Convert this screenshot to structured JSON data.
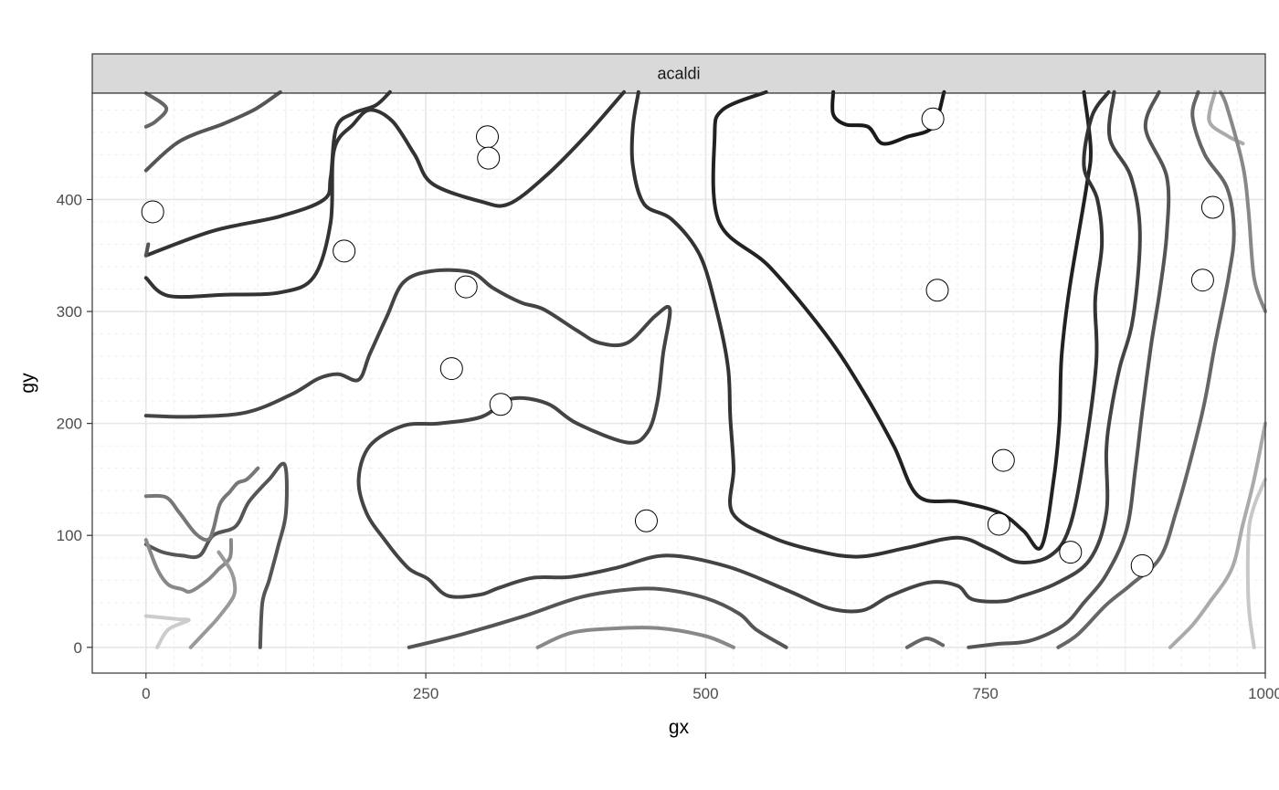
{
  "chart_data": {
    "type": "scatter",
    "facet_label": "acaldi",
    "xlabel": "gx",
    "ylabel": "gy",
    "xlim": [
      -48,
      1000
    ],
    "ylim": [
      -23,
      495
    ],
    "x_ticks": [
      0,
      250,
      500,
      750,
      1000
    ],
    "x_tick_labels": [
      "0",
      "250",
      "500",
      "750",
      "1000"
    ],
    "y_ticks": [
      0,
      100,
      200,
      300,
      400
    ],
    "y_tick_labels": [
      "0",
      "100",
      "200",
      "300",
      "400"
    ],
    "grid": true,
    "theme": "bw",
    "points": [
      {
        "x": 6,
        "y": 389
      },
      {
        "x": 177,
        "y": 354
      },
      {
        "x": 305,
        "y": 456
      },
      {
        "x": 306,
        "y": 437
      },
      {
        "x": 286,
        "y": 322
      },
      {
        "x": 273,
        "y": 249
      },
      {
        "x": 317,
        "y": 217
      },
      {
        "x": 447,
        "y": 113
      },
      {
        "x": 703,
        "y": 472
      },
      {
        "x": 707,
        "y": 319
      },
      {
        "x": 766,
        "y": 167
      },
      {
        "x": 762,
        "y": 110
      },
      {
        "x": 826,
        "y": 85
      },
      {
        "x": 890,
        "y": 73
      },
      {
        "x": 953,
        "y": 393
      },
      {
        "x": 944,
        "y": 328
      }
    ],
    "contours": [
      {
        "color": "#1a1a1a",
        "points": [
          [
            614,
            496
          ],
          [
            614,
            476
          ],
          [
            625,
            467
          ],
          [
            645,
            465
          ],
          [
            658,
            450
          ],
          [
            680,
            456
          ],
          [
            703,
            465
          ],
          [
            713,
            496
          ]
        ]
      },
      {
        "color": "#222222",
        "points": [
          [
            554,
            496
          ],
          [
            515,
            480
          ],
          [
            508,
            455
          ],
          [
            512,
            380
          ],
          [
            557,
            340
          ],
          [
            607,
            280
          ],
          [
            640,
            230
          ],
          [
            668,
            180
          ],
          [
            690,
            135
          ],
          [
            726,
            130
          ],
          [
            763,
            120
          ],
          [
            784,
            104
          ],
          [
            800,
            90
          ],
          [
            811,
            150
          ],
          [
            816,
            200
          ],
          [
            818,
            260
          ],
          [
            825,
            320
          ],
          [
            840,
            410
          ],
          [
            844,
            445
          ],
          [
            838,
            496
          ]
        ]
      },
      {
        "color": "#333333",
        "points": [
          [
            218,
            496
          ],
          [
            205,
            484
          ],
          [
            185,
            477
          ],
          [
            170,
            464
          ],
          [
            165,
            420
          ],
          [
            159,
            400
          ],
          [
            120,
            385
          ],
          [
            60,
            372
          ],
          [
            0,
            350
          ]
        ]
      },
      {
        "color": "#333333",
        "points": [
          [
            0,
            330
          ],
          [
            20,
            314
          ],
          [
            70,
            315
          ],
          [
            120,
            317
          ],
          [
            150,
            331
          ],
          [
            165,
            380
          ],
          [
            168,
            444
          ],
          [
            185,
            467
          ],
          [
            200,
            480
          ],
          [
            220,
            470
          ],
          [
            240,
            440
          ],
          [
            256,
            414
          ],
          [
            300,
            398
          ],
          [
            324,
            396
          ],
          [
            356,
            420
          ],
          [
            392,
            456
          ],
          [
            427,
            496
          ]
        ]
      },
      {
        "color": "#333333",
        "points": [
          [
            440,
            496
          ],
          [
            435,
            465
          ],
          [
            435,
            430
          ],
          [
            445,
            396
          ],
          [
            470,
            382
          ],
          [
            495,
            350
          ],
          [
            510,
            300
          ],
          [
            520,
            250
          ],
          [
            522,
            205
          ],
          [
            525,
            160
          ],
          [
            524,
            120
          ],
          [
            560,
            98
          ],
          [
            600,
            86
          ],
          [
            637,
            81
          ],
          [
            680,
            89
          ],
          [
            725,
            98
          ],
          [
            753,
            88
          ],
          [
            780,
            76
          ],
          [
            808,
            82
          ],
          [
            825,
            107
          ],
          [
            838,
            170
          ],
          [
            849,
            255
          ],
          [
            848,
            310
          ],
          [
            854,
            360
          ],
          [
            850,
            400
          ],
          [
            838,
            430
          ],
          [
            845,
            474
          ],
          [
            860,
            496
          ]
        ]
      },
      {
        "color": "#444444",
        "points": [
          [
            0,
            207
          ],
          [
            40,
            206
          ],
          [
            90,
            210
          ],
          [
            130,
            226
          ],
          [
            154,
            240
          ],
          [
            172,
            244
          ],
          [
            190,
            239
          ],
          [
            200,
            262
          ],
          [
            215,
            295
          ],
          [
            230,
            326
          ],
          [
            255,
            336
          ],
          [
            290,
            335
          ],
          [
            310,
            321
          ],
          [
            335,
            308
          ],
          [
            355,
            302
          ],
          [
            385,
            283
          ],
          [
            405,
            272
          ],
          [
            430,
            272
          ],
          [
            455,
            296
          ],
          [
            468,
            302
          ],
          [
            462,
            262
          ],
          [
            457,
            220
          ],
          [
            448,
            192
          ],
          [
            430,
            183
          ],
          [
            385,
            200
          ],
          [
            358,
            218
          ],
          [
            326,
            222
          ],
          [
            300,
            206
          ],
          [
            262,
            200
          ],
          [
            230,
            198
          ],
          [
            200,
            180
          ],
          [
            190,
            150
          ],
          [
            197,
            120
          ],
          [
            214,
            95
          ],
          [
            232,
            73
          ],
          [
            240,
            67
          ],
          [
            252,
            61
          ],
          [
            270,
            46
          ],
          [
            298,
            47
          ],
          [
            315,
            53
          ],
          [
            345,
            62
          ],
          [
            380,
            63
          ],
          [
            420,
            71
          ],
          [
            465,
            82
          ],
          [
            520,
            72
          ],
          [
            575,
            50
          ],
          [
            610,
            35
          ],
          [
            640,
            33
          ],
          [
            665,
            46
          ],
          [
            700,
            58
          ],
          [
            725,
            55
          ],
          [
            738,
            43
          ],
          [
            764,
            41
          ],
          [
            780,
            45
          ],
          [
            813,
            57
          ],
          [
            843,
            78
          ],
          [
            858,
            120
          ],
          [
            858,
            175
          ],
          [
            862,
            210
          ],
          [
            870,
            250
          ],
          [
            882,
            295
          ],
          [
            888,
            370
          ],
          [
            880,
            420
          ],
          [
            861,
            455
          ],
          [
            865,
            496
          ]
        ]
      },
      {
        "color": "#555555",
        "points": [
          [
            0,
            92
          ],
          [
            15,
            85
          ],
          [
            32,
            82
          ],
          [
            48,
            82
          ],
          [
            60,
            100
          ],
          [
            80,
            108
          ],
          [
            92,
            130
          ],
          [
            110,
            150
          ],
          [
            124,
            163
          ],
          [
            125,
            120
          ],
          [
            118,
            90
          ],
          [
            110,
            60
          ],
          [
            104,
            40
          ],
          [
            102,
            0
          ]
        ]
      },
      {
        "color": "#555555",
        "points": [
          [
            0,
            426
          ],
          [
            30,
            452
          ],
          [
            70,
            468
          ],
          [
            98,
            481
          ],
          [
            120,
            496
          ]
        ]
      },
      {
        "color": "#666666",
        "points": [
          [
            0,
            495
          ],
          [
            18,
            482
          ],
          [
            9,
            470
          ],
          [
            0,
            465
          ]
        ]
      },
      {
        "color": "#555555",
        "points": [
          [
            235,
            0
          ],
          [
            280,
            11
          ],
          [
            335,
            27
          ],
          [
            385,
            44
          ],
          [
            425,
            51
          ],
          [
            460,
            52
          ],
          [
            500,
            44
          ],
          [
            530,
            30
          ],
          [
            545,
            16
          ],
          [
            572,
            0
          ]
        ]
      },
      {
        "color": "#555555",
        "points": [
          [
            0,
            350
          ],
          [
            2,
            360
          ]
        ]
      },
      {
        "color": "#666666",
        "points": [
          [
            680,
            0
          ],
          [
            697,
            8
          ],
          [
            712,
            2
          ]
        ]
      },
      {
        "color": "#555555",
        "points": [
          [
            735,
            0
          ],
          [
            760,
            3
          ],
          [
            790,
            6
          ],
          [
            820,
            20
          ],
          [
            838,
            40
          ],
          [
            858,
            65
          ],
          [
            876,
            105
          ],
          [
            884,
            160
          ],
          [
            890,
            210
          ],
          [
            898,
            270
          ],
          [
            906,
            320
          ],
          [
            912,
            370
          ],
          [
            912,
            420
          ],
          [
            893,
            464
          ],
          [
            905,
            496
          ]
        ]
      },
      {
        "color": "#666666",
        "points": [
          [
            815,
            0
          ],
          [
            833,
            12
          ],
          [
            858,
            38
          ],
          [
            880,
            56
          ],
          [
            906,
            80
          ],
          [
            920,
            120
          ],
          [
            934,
            170
          ],
          [
            946,
            220
          ],
          [
            955,
            270
          ],
          [
            967,
            330
          ],
          [
            972,
            370
          ],
          [
            966,
            410
          ],
          [
            946,
            440
          ],
          [
            935,
            474
          ],
          [
            940,
            496
          ]
        ]
      },
      {
        "color": "#777777",
        "points": [
          [
            0,
            135
          ],
          [
            18,
            134
          ],
          [
            30,
            120
          ],
          [
            44,
            102
          ],
          [
            55,
            96
          ],
          [
            60,
            105
          ],
          [
            66,
            128
          ],
          [
            75,
            139
          ],
          [
            82,
            147
          ],
          [
            90,
            150
          ],
          [
            100,
            160
          ]
        ]
      },
      {
        "color": "#888888",
        "points": [
          [
            0,
            96
          ],
          [
            10,
            70
          ],
          [
            20,
            56
          ],
          [
            32,
            52
          ],
          [
            40,
            50
          ],
          [
            55,
            60
          ],
          [
            65,
            70
          ],
          [
            75,
            80
          ],
          [
            76,
            96
          ]
        ]
      },
      {
        "color": "#888888",
        "points": [
          [
            350,
            0
          ],
          [
            380,
            13
          ],
          [
            420,
            17
          ],
          [
            460,
            17
          ],
          [
            500,
            10
          ],
          [
            525,
            0
          ]
        ]
      },
      {
        "color": "#999999",
        "points": [
          [
            40,
            0
          ],
          [
            55,
            16
          ],
          [
            65,
            27
          ],
          [
            78,
            45
          ],
          [
            79,
            58
          ],
          [
            75,
            70
          ],
          [
            65,
            85
          ]
        ]
      },
      {
        "color": "#aaaaaa",
        "points": [
          [
            915,
            0
          ],
          [
            935,
            20
          ],
          [
            950,
            40
          ],
          [
            970,
            70
          ],
          [
            980,
            110
          ],
          [
            990,
            150
          ],
          [
            1000,
            200
          ]
        ]
      },
      {
        "color": "#cccccc",
        "points": [
          [
            0,
            28
          ],
          [
            20,
            26
          ],
          [
            30,
            25
          ],
          [
            38,
            24
          ],
          [
            20,
            16
          ],
          [
            10,
            0
          ]
        ]
      },
      {
        "color": "#c8c8c8",
        "points": [
          [
            990,
            0
          ],
          [
            985,
            40
          ],
          [
            985,
            100
          ],
          [
            990,
            126
          ],
          [
            1000,
            150
          ]
        ]
      },
      {
        "color": "#aaaaaa",
        "points": [
          [
            955,
            496
          ],
          [
            950,
            470
          ],
          [
            966,
            457
          ],
          [
            980,
            450
          ]
        ]
      },
      {
        "color": "#888888",
        "points": [
          [
            1000,
            300
          ],
          [
            990,
            330
          ],
          [
            985,
            390
          ],
          [
            980,
            430
          ],
          [
            966,
            482
          ],
          [
            960,
            496
          ]
        ]
      }
    ]
  }
}
